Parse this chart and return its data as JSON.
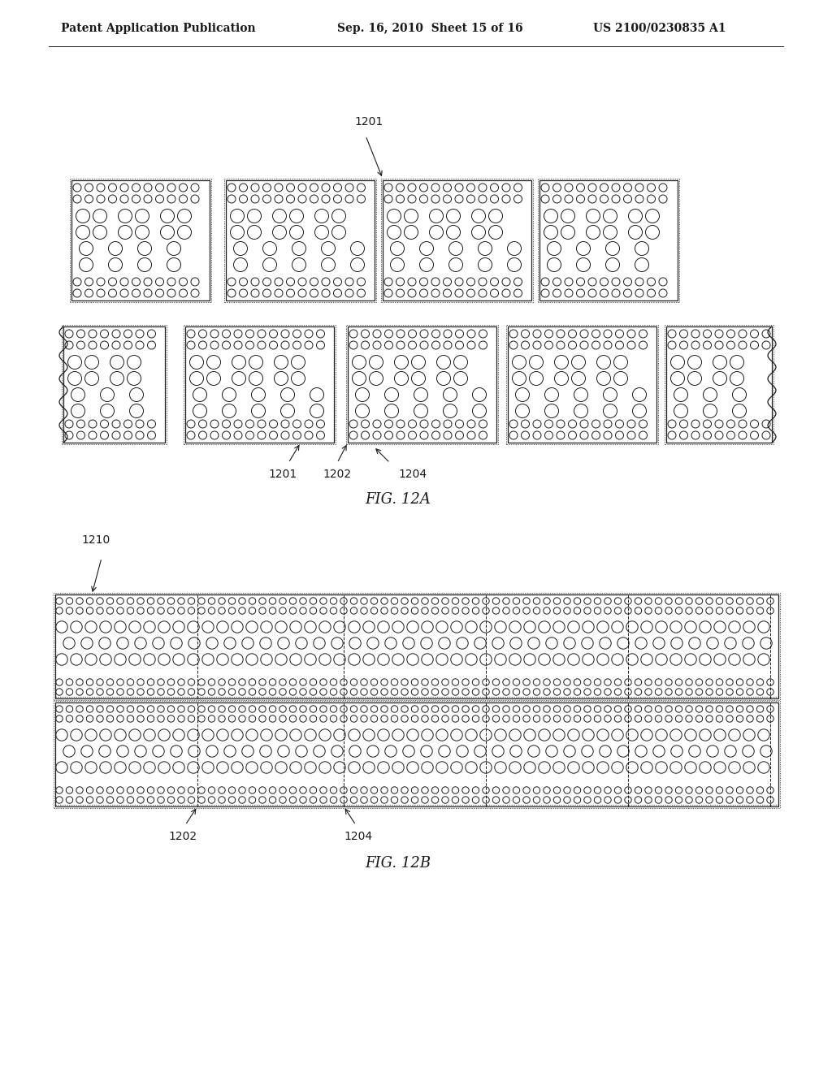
{
  "header_left": "Patent Application Publication",
  "header_mid": "Sep. 16, 2010  Sheet 15 of 16",
  "header_right": "US 2100/0230835 A1",
  "fig_a_label": "FIG. 12A",
  "fig_b_label": "FIG. 12B",
  "label_1201": "1201",
  "label_1202": "1202",
  "label_1204": "1204",
  "label_1210": "1210",
  "bg_color": "#ffffff",
  "lc": "#1a1a1a",
  "font_size_header": 10,
  "font_size_label": 9,
  "font_size_fig": 13
}
